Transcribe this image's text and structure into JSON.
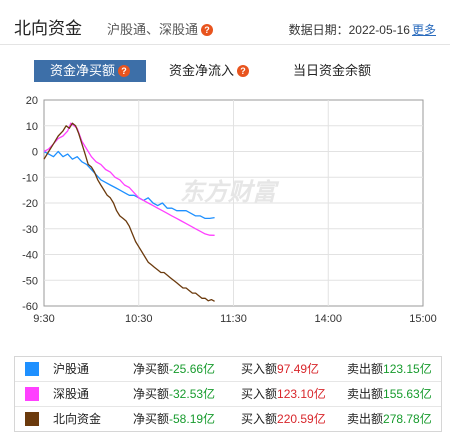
{
  "header": {
    "title": "北向资金",
    "subtitle": "沪股通、深股通",
    "date_label": "数据日期：2022-05-16",
    "more_label": "更多"
  },
  "tabs": [
    {
      "label": "资金净买额",
      "active": true,
      "has_help": true
    },
    {
      "label": "资金净流入",
      "active": false,
      "has_help": true
    },
    {
      "label": "当日资金余额",
      "active": false,
      "has_help": false
    }
  ],
  "watermark": "东方财富",
  "chart_data": {
    "type": "line",
    "x_tick_labels": [
      "9:30",
      "10:30",
      "11:30",
      "14:00",
      "15:00"
    ],
    "y_tick_labels": [
      "20",
      "10",
      "0",
      "-10",
      "-20",
      "-30",
      "-40",
      "-50",
      "-60"
    ],
    "ylim": [
      -60,
      20
    ],
    "grid": true,
    "x_unit": "minutes of trading session (0 = 9:30, 240 = 15:00)",
    "series": [
      {
        "name": "沪股通",
        "color": "#1e90ff",
        "points": [
          [
            0,
            0
          ],
          [
            3,
            -1
          ],
          [
            6,
            -2
          ],
          [
            9,
            0
          ],
          [
            12,
            -2
          ],
          [
            15,
            -1
          ],
          [
            18,
            -3
          ],
          [
            21,
            -2
          ],
          [
            24,
            -4
          ],
          [
            27,
            -5
          ],
          [
            30,
            -7
          ],
          [
            33,
            -9
          ],
          [
            36,
            -11
          ],
          [
            39,
            -12
          ],
          [
            42,
            -13
          ],
          [
            45,
            -14
          ],
          [
            48,
            -15
          ],
          [
            51,
            -16
          ],
          [
            54,
            -17
          ],
          [
            57,
            -17
          ],
          [
            60,
            -18
          ],
          [
            63,
            -19
          ],
          [
            66,
            -18
          ],
          [
            69,
            -20
          ],
          [
            72,
            -21
          ],
          [
            75,
            -20
          ],
          [
            78,
            -22
          ],
          [
            81,
            -22
          ],
          [
            84,
            -23
          ],
          [
            87,
            -23
          ],
          [
            90,
            -23
          ],
          [
            93,
            -24
          ],
          [
            96,
            -25
          ],
          [
            99,
            -25
          ],
          [
            102,
            -26
          ],
          [
            105,
            -26
          ],
          [
            108,
            -25.66
          ]
        ]
      },
      {
        "name": "深股通",
        "color": "#ff40ff",
        "points": [
          [
            0,
            0
          ],
          [
            3,
            1
          ],
          [
            6,
            3
          ],
          [
            9,
            5
          ],
          [
            12,
            6
          ],
          [
            15,
            8
          ],
          [
            17,
            11
          ],
          [
            19,
            10
          ],
          [
            21,
            9
          ],
          [
            24,
            4
          ],
          [
            27,
            1
          ],
          [
            30,
            -2
          ],
          [
            33,
            -4
          ],
          [
            36,
            -5
          ],
          [
            39,
            -7
          ],
          [
            42,
            -8
          ],
          [
            45,
            -10
          ],
          [
            48,
            -11
          ],
          [
            51,
            -13
          ],
          [
            54,
            -14
          ],
          [
            57,
            -16
          ],
          [
            60,
            -18
          ],
          [
            63,
            -19
          ],
          [
            66,
            -20
          ],
          [
            69,
            -21
          ],
          [
            72,
            -22
          ],
          [
            75,
            -23
          ],
          [
            78,
            -24
          ],
          [
            81,
            -25
          ],
          [
            84,
            -26
          ],
          [
            87,
            -27
          ],
          [
            90,
            -28
          ],
          [
            93,
            -29
          ],
          [
            96,
            -30
          ],
          [
            99,
            -31
          ],
          [
            102,
            -32
          ],
          [
            105,
            -32.5
          ],
          [
            108,
            -32.53
          ]
        ]
      },
      {
        "name": "北向资金",
        "color": "#6b3a0d",
        "points": [
          [
            0,
            -3
          ],
          [
            3,
            0
          ],
          [
            6,
            3
          ],
          [
            9,
            6
          ],
          [
            12,
            8
          ],
          [
            14,
            10
          ],
          [
            16,
            9
          ],
          [
            18,
            11
          ],
          [
            20,
            10
          ],
          [
            22,
            7
          ],
          [
            24,
            3
          ],
          [
            26,
            -1
          ],
          [
            28,
            -5
          ],
          [
            30,
            -6
          ],
          [
            32,
            -8
          ],
          [
            34,
            -11
          ],
          [
            36,
            -13
          ],
          [
            38,
            -15
          ],
          [
            40,
            -17
          ],
          [
            42,
            -18
          ],
          [
            44,
            -20
          ],
          [
            46,
            -23
          ],
          [
            48,
            -25
          ],
          [
            50,
            -26
          ],
          [
            52,
            -27
          ],
          [
            54,
            -29
          ],
          [
            56,
            -32
          ],
          [
            58,
            -35
          ],
          [
            60,
            -37
          ],
          [
            62,
            -39
          ],
          [
            64,
            -41
          ],
          [
            66,
            -43
          ],
          [
            68,
            -44
          ],
          [
            70,
            -45
          ],
          [
            72,
            -46
          ],
          [
            74,
            -47
          ],
          [
            76,
            -47
          ],
          [
            78,
            -48
          ],
          [
            80,
            -49
          ],
          [
            82,
            -50
          ],
          [
            84,
            -51
          ],
          [
            86,
            -52
          ],
          [
            88,
            -53
          ],
          [
            90,
            -53
          ],
          [
            92,
            -54
          ],
          [
            94,
            -55
          ],
          [
            96,
            -55
          ],
          [
            98,
            -56
          ],
          [
            100,
            -57
          ],
          [
            102,
            -57
          ],
          [
            104,
            -58
          ],
          [
            106,
            -57.5
          ],
          [
            108,
            -58.19
          ]
        ]
      }
    ]
  },
  "legend": {
    "net_label": "净买额",
    "buy_label": "买入额",
    "sell_label": "卖出额",
    "rows": [
      {
        "name": "沪股通",
        "color": "#1e90ff",
        "net": "-25.66亿",
        "buy": "97.49亿",
        "sell": "123.15亿"
      },
      {
        "name": "深股通",
        "color": "#ff40ff",
        "net": "-32.53亿",
        "buy": "123.10亿",
        "sell": "155.63亿"
      },
      {
        "name": "北向资金",
        "color": "#6b3a0d",
        "net": "-58.19亿",
        "buy": "220.59亿",
        "sell": "278.78亿"
      }
    ]
  }
}
